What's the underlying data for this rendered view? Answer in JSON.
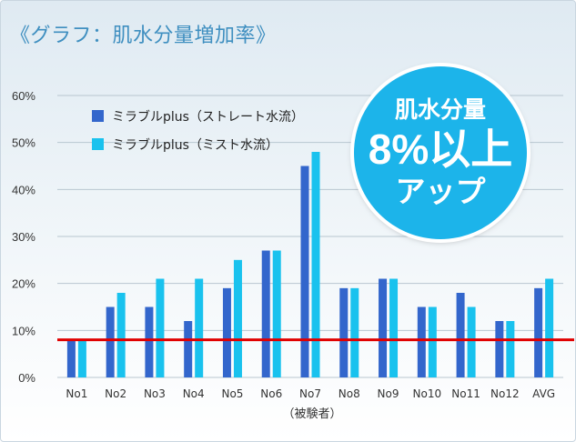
{
  "title": "《グラフ：肌水分量増加率》",
  "badge": {
    "line1": "肌水分量",
    "line2": "8%以上",
    "line3": "アップ"
  },
  "colors": {
    "series1": "#3366cc",
    "series2": "#19c2ee",
    "reference": "#e00000",
    "grid": "#b8c6d0"
  },
  "chart_data": {
    "type": "bar",
    "categories": [
      "No1",
      "No2",
      "No3",
      "No4",
      "No5",
      "No6",
      "No7",
      "No8",
      "No9",
      "No10",
      "No11",
      "No12",
      "AVG"
    ],
    "series": [
      {
        "name": "ミラブルplus（ストレート水流）",
        "values": [
          8,
          15,
          15,
          12,
          19,
          27,
          45,
          19,
          21,
          15,
          18,
          12,
          19
        ]
      },
      {
        "name": "ミラブルplus（ミスト水流）",
        "values": [
          8,
          18,
          21,
          21,
          25,
          27,
          48,
          19,
          21,
          15,
          15,
          12,
          21
        ]
      }
    ],
    "yticks": [
      "0%",
      "10%",
      "20%",
      "30%",
      "40%",
      "50%",
      "60%"
    ],
    "ylim": [
      0,
      60
    ],
    "reference_line": 8,
    "xlabel": "（被験者）",
    "ylabel": "",
    "grid": true,
    "legend_position": "top-left"
  }
}
